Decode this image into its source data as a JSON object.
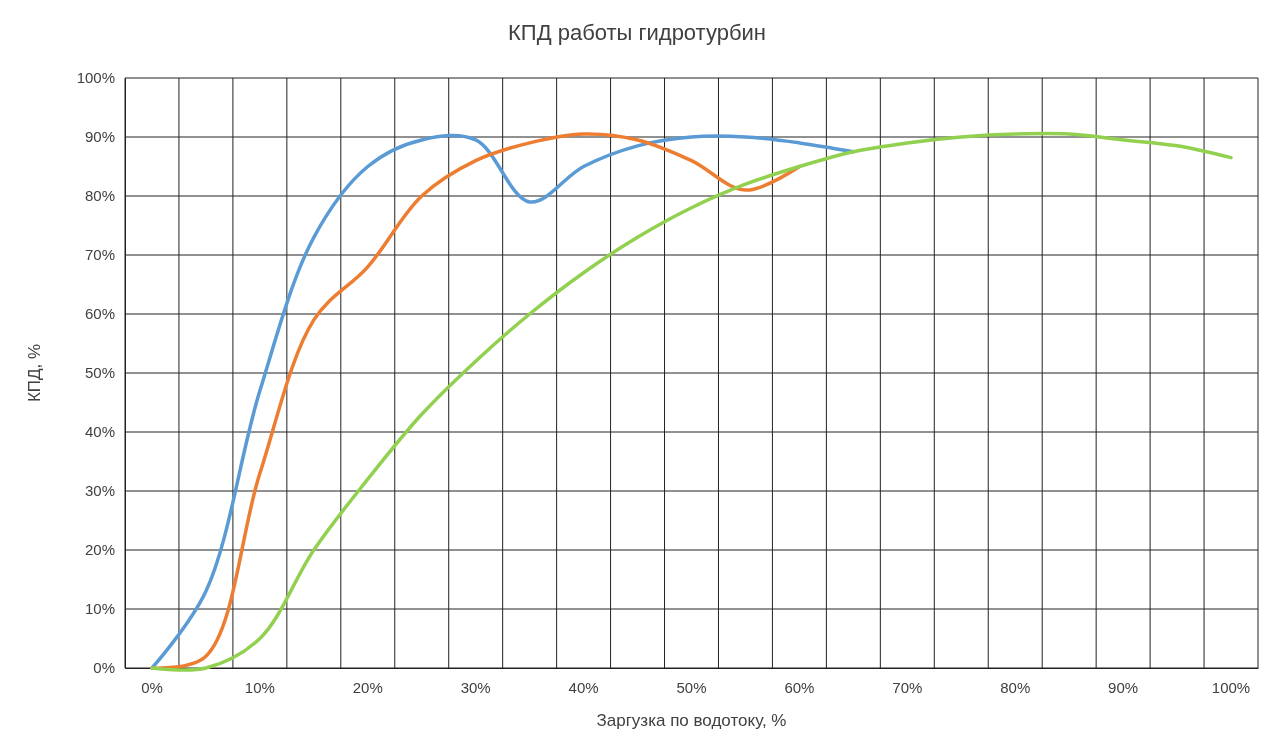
{
  "chart_data": {
    "type": "line",
    "title": "КПД работы гидротурбин",
    "xlabel": "Заргузка по водотоку, %",
    "ylabel": "КПД, %",
    "categories": [
      "0%",
      null,
      "10%",
      null,
      "20%",
      null,
      "30%",
      null,
      "40%",
      null,
      "50%",
      null,
      "60%",
      null,
      "70%",
      null,
      "80%",
      null,
      "90%",
      null,
      "100%"
    ],
    "series": [
      {
        "color": "#5b9bd5",
        "values": [
          0,
          13,
          47,
          73,
          85,
          89.5,
          89.5,
          79,
          85,
          88.5,
          90,
          90,
          89,
          87.5,
          null,
          null,
          null,
          null,
          null,
          null,
          null
        ]
      },
      {
        "color": "#ed7d31",
        "values": [
          0,
          2,
          33,
          59,
          68,
          80,
          86,
          89,
          90.5,
          89.5,
          86,
          81,
          85,
          null,
          null,
          null,
          null,
          null,
          null,
          null,
          null
        ]
      },
      {
        "color": "#92d050",
        "values": [
          0,
          0,
          5,
          20,
          32,
          43,
          52,
          60,
          67,
          73,
          78,
          82,
          85,
          87.5,
          89,
          90,
          90.5,
          90.5,
          89.5,
          88.5,
          86.5
        ]
      }
    ],
    "ylim": [
      0,
      100
    ],
    "yticks": [
      {
        "value": 0,
        "label": "0%"
      },
      {
        "value": 10,
        "label": "10%"
      },
      {
        "value": 20,
        "label": "20%"
      },
      {
        "value": 30,
        "label": "30%"
      },
      {
        "value": 40,
        "label": "40%"
      },
      {
        "value": 50,
        "label": "50%"
      },
      {
        "value": 60,
        "label": "60%"
      },
      {
        "value": 70,
        "label": "70%"
      },
      {
        "value": 80,
        "label": "80%"
      },
      {
        "value": 90,
        "label": "90%"
      },
      {
        "value": 100,
        "label": "100%"
      }
    ],
    "grid": true,
    "marker": "none",
    "line_style": "solid"
  }
}
